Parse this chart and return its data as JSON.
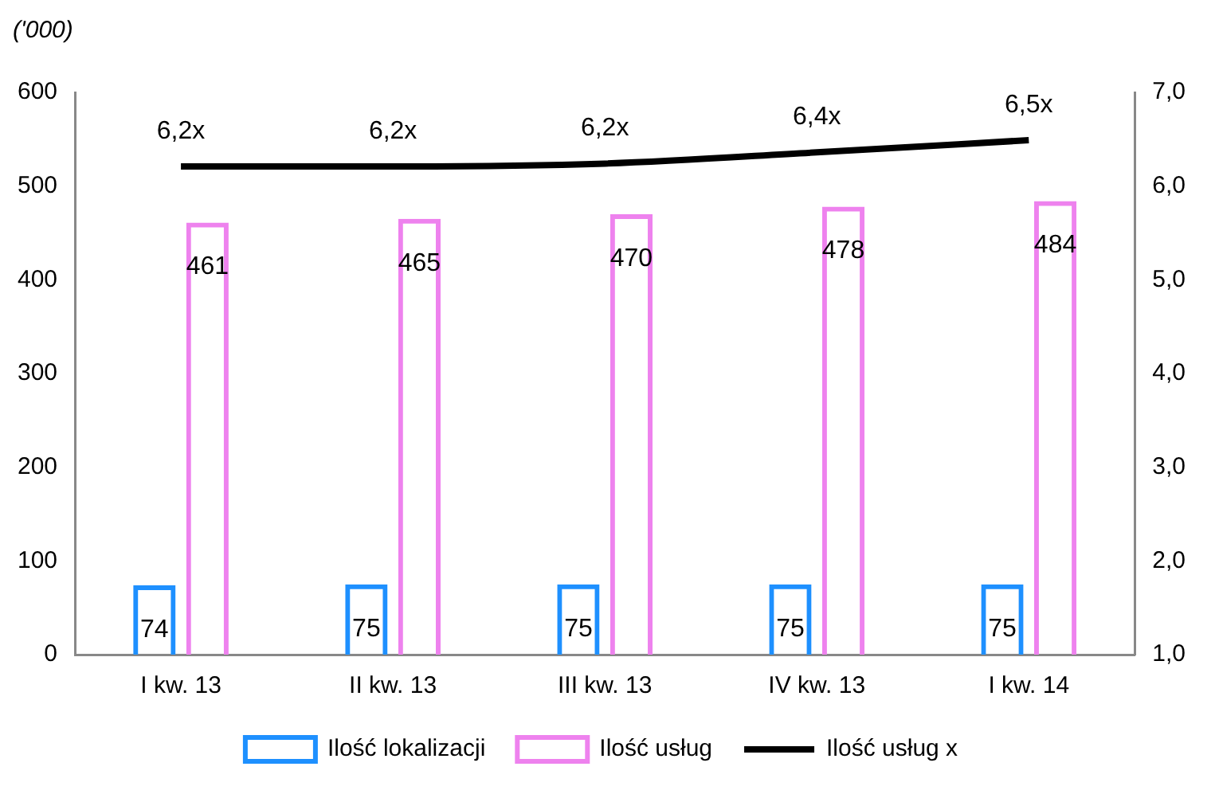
{
  "chart_data": {
    "type": "bar",
    "ylabel": "('000)",
    "categories": [
      "I kw. 13",
      "II kw. 13",
      "III kw. 13",
      "IV kw. 13",
      "I kw. 14"
    ],
    "series": [
      {
        "name": "Ilość lokalizacji",
        "color": "#1e90ff",
        "values": [
          74,
          75,
          75,
          75,
          75
        ],
        "value_labels": [
          "74",
          "75",
          "75",
          "75",
          "75"
        ]
      },
      {
        "name": "Ilość usług",
        "color": "#ee82ee",
        "values": [
          461,
          465,
          470,
          478,
          484
        ],
        "value_labels": [
          "461",
          "465",
          "470",
          "478",
          "484"
        ]
      },
      {
        "name": "Ilość usług x",
        "type": "line",
        "axis": "y2",
        "color": "#000000",
        "values": [
          6.21,
          6.21,
          6.24,
          6.36,
          6.49
        ],
        "value_labels": [
          "6,2x",
          "6,2x",
          "6,2x",
          "6,4x",
          "6,5x"
        ]
      }
    ],
    "ylim": [
      0,
      600
    ],
    "yticks": [
      0,
      100,
      200,
      300,
      400,
      500,
      600
    ],
    "y2lim": [
      1,
      7
    ],
    "y2ticks": [
      {
        "value": 1,
        "label": "1,0"
      },
      {
        "value": 2,
        "label": "2,0"
      },
      {
        "value": 3,
        "label": "3,0"
      },
      {
        "value": 4,
        "label": "4,0"
      },
      {
        "value": 5,
        "label": "5,0"
      },
      {
        "value": 6,
        "label": "6,0"
      },
      {
        "value": 7,
        "label": "7,0"
      }
    ],
    "legend": "bottom",
    "grid": false,
    "marker": "none"
  }
}
